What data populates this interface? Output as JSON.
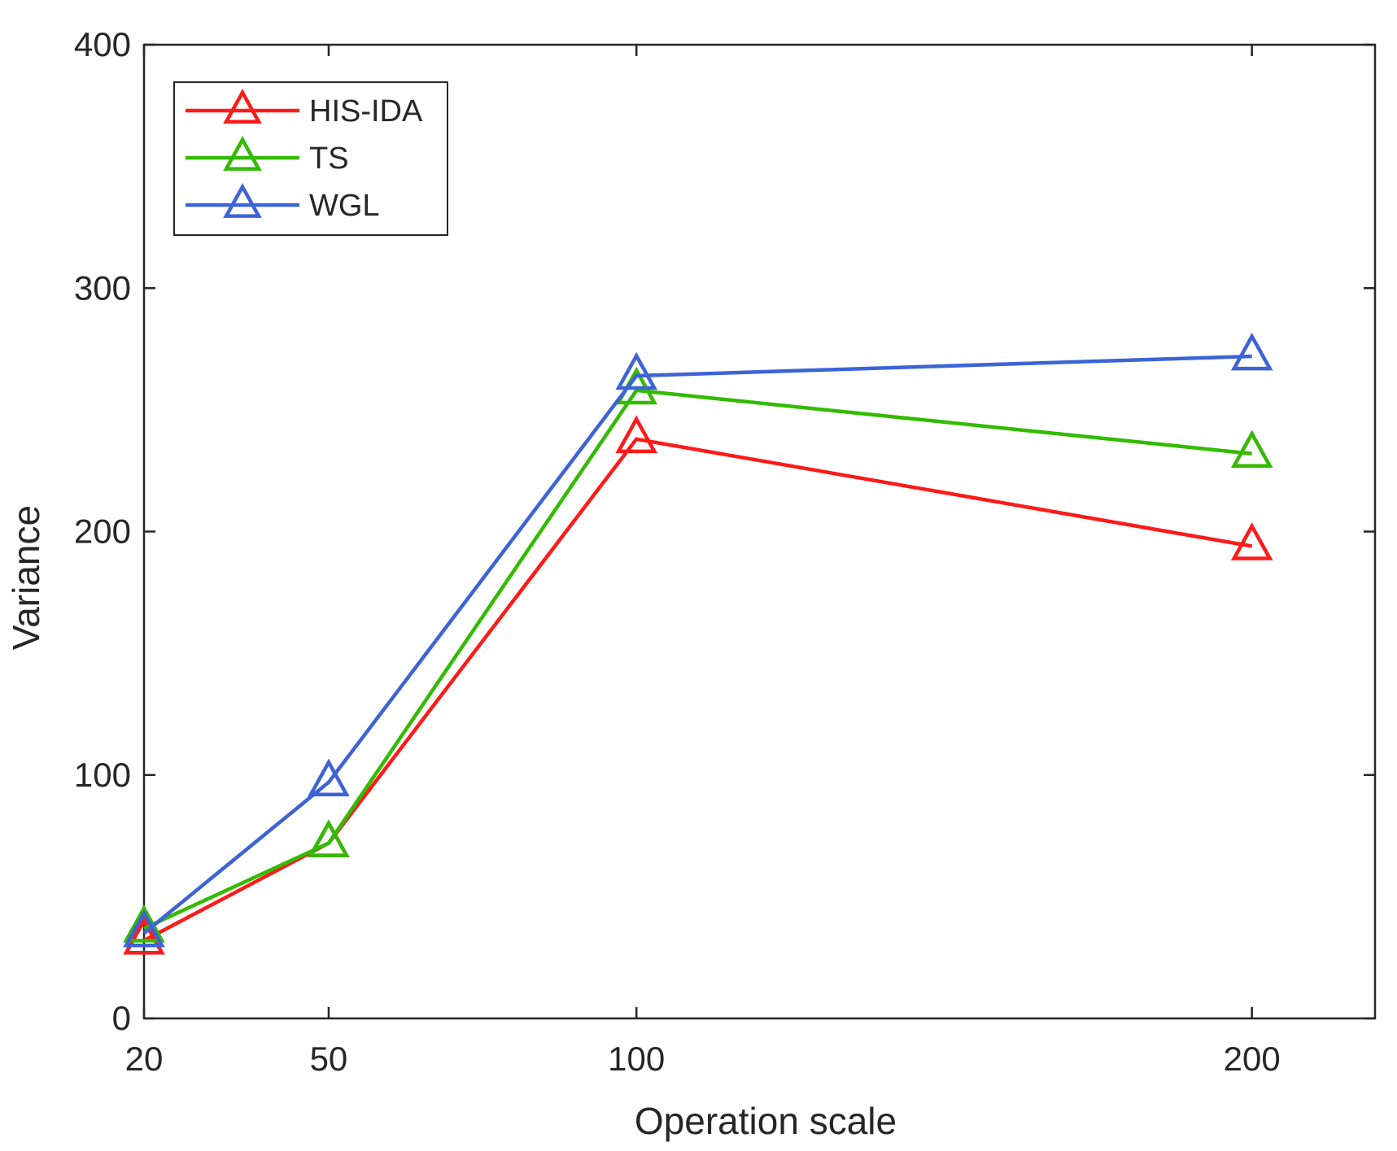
{
  "chart_data": {
    "type": "line",
    "title": "",
    "xlabel": "Operation scale",
    "ylabel": "Variance",
    "x": [
      20,
      50,
      100,
      200
    ],
    "xticks": [
      "20",
      "50",
      "100",
      "200"
    ],
    "xlim": [
      20,
      220
    ],
    "ylim": [
      0,
      400
    ],
    "yticks": [
      0,
      100,
      200,
      300,
      400
    ],
    "ytick_labels": [
      "0",
      "100",
      "200",
      "300",
      "400"
    ],
    "grid": false,
    "legend_position": "top-left",
    "marker": "open-triangle",
    "series": [
      {
        "name": "HIS-IDA",
        "color": "#ff1a1a",
        "values": [
          32,
          72,
          238,
          194
        ]
      },
      {
        "name": "TS",
        "color": "#33bb00",
        "values": [
          37,
          72,
          258,
          232
        ]
      },
      {
        "name": "WGL",
        "color": "#3d63d6",
        "values": [
          35,
          97,
          264,
          272
        ]
      }
    ]
  }
}
